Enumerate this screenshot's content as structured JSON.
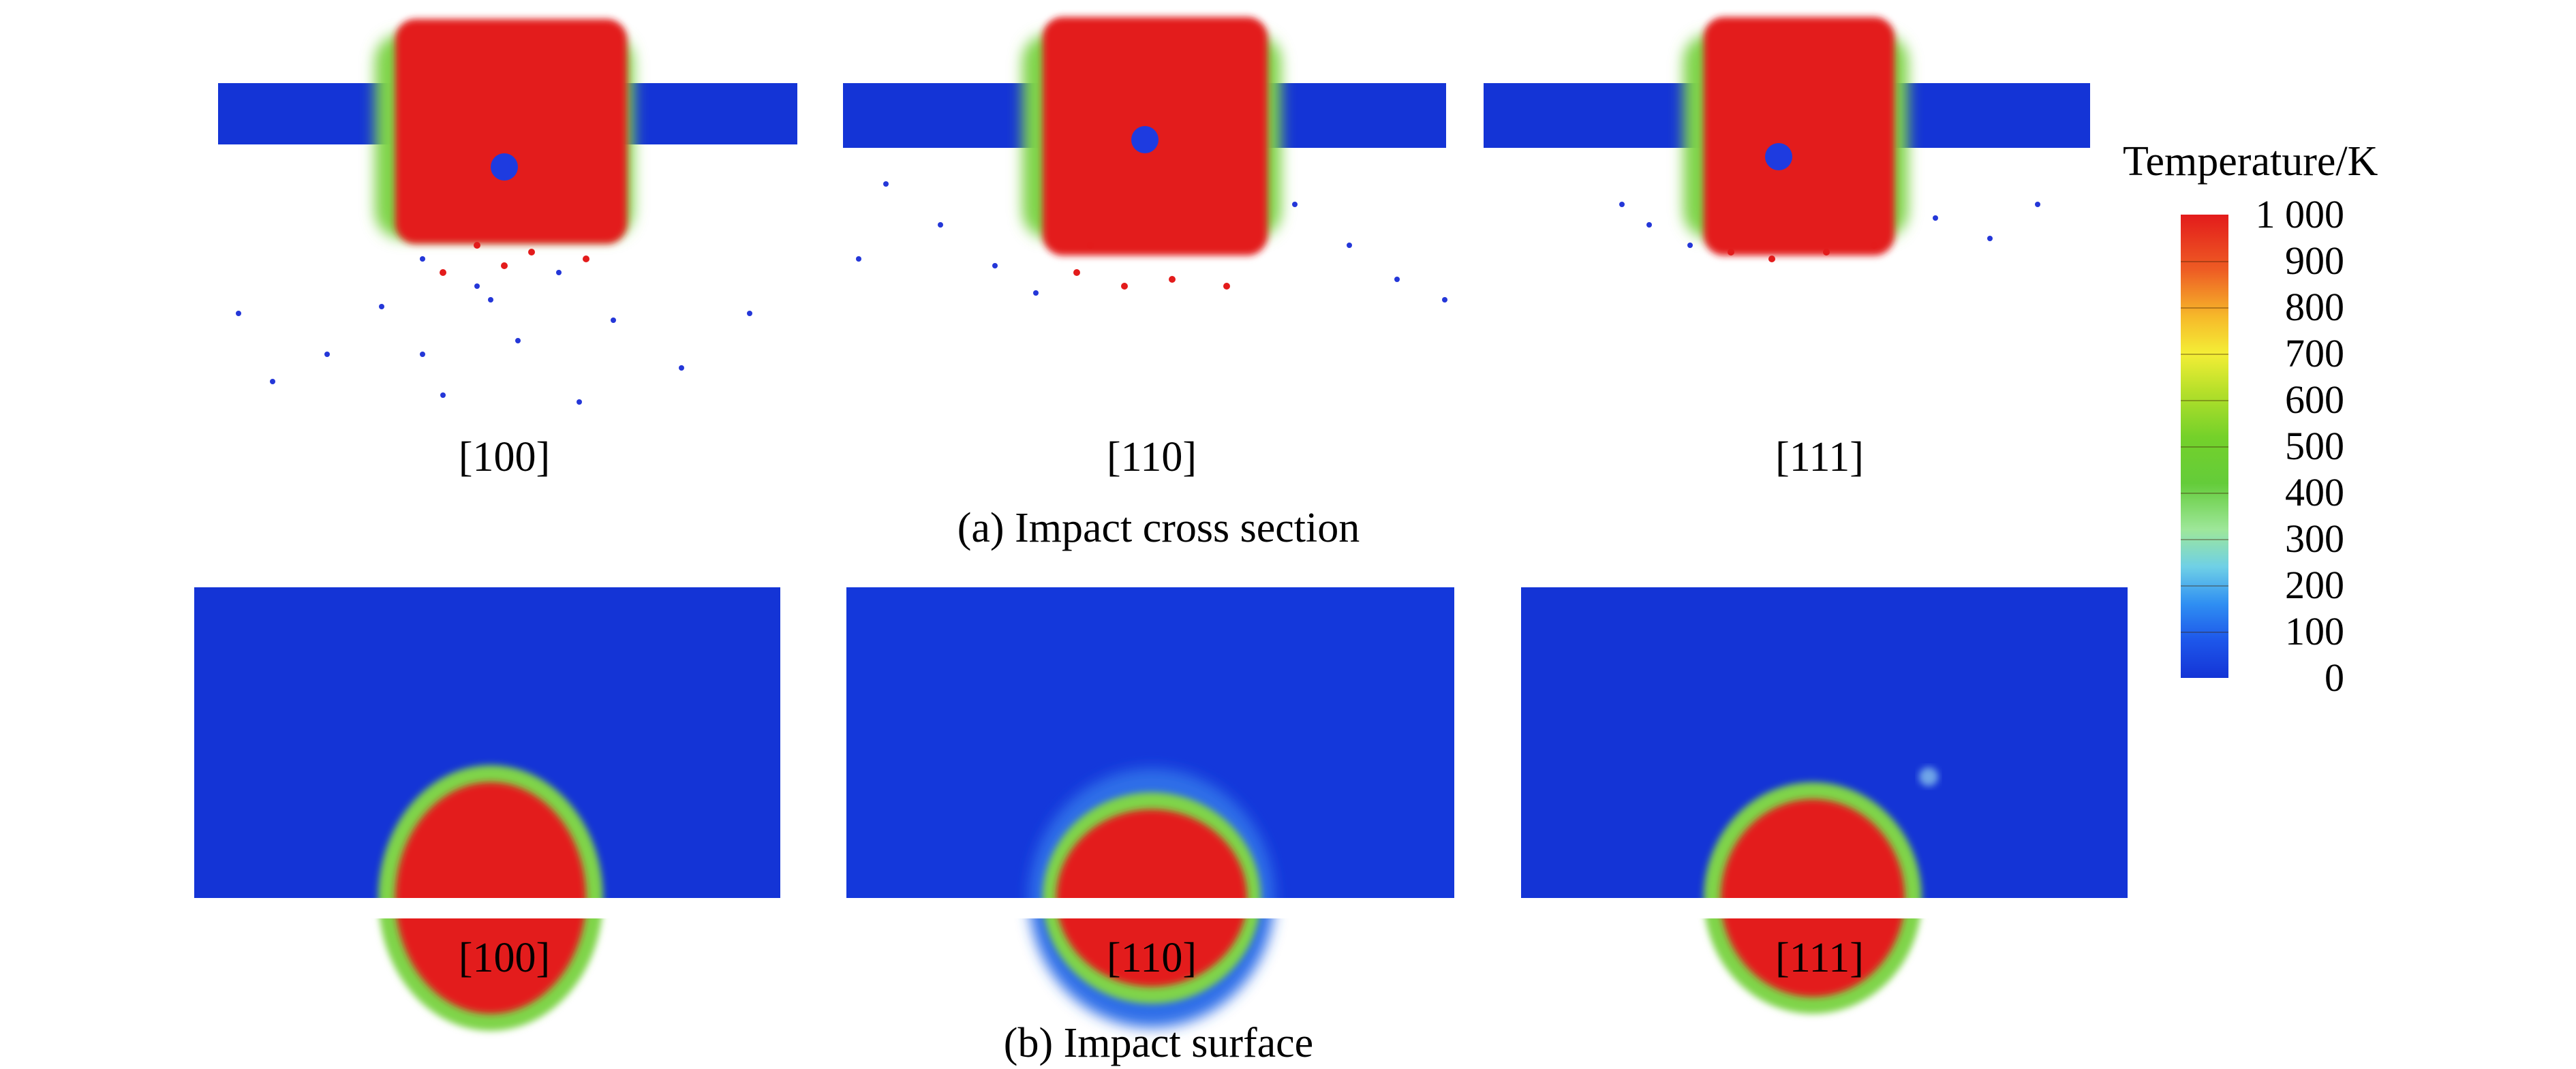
{
  "figure": {
    "row_a": {
      "panel_labels": [
        "[100]",
        "[110]",
        "[111]"
      ],
      "caption": "(a) Impact cross section"
    },
    "row_b": {
      "panel_labels": [
        "[100]",
        "[110]",
        "[111]"
      ],
      "caption": "(b) Impact surface"
    }
  },
  "colorbar": {
    "title": "Temperature/K",
    "ticks": [
      "1 000",
      "900",
      "800",
      "700",
      "600",
      "500",
      "400",
      "300",
      "200",
      "100",
      "0"
    ],
    "colors": {
      "cold": "#1434d6",
      "cool": "#2f8ff2",
      "mid": "#64cc3a",
      "warm": "#f4ee36",
      "hot": "#e31b1b"
    }
  }
}
